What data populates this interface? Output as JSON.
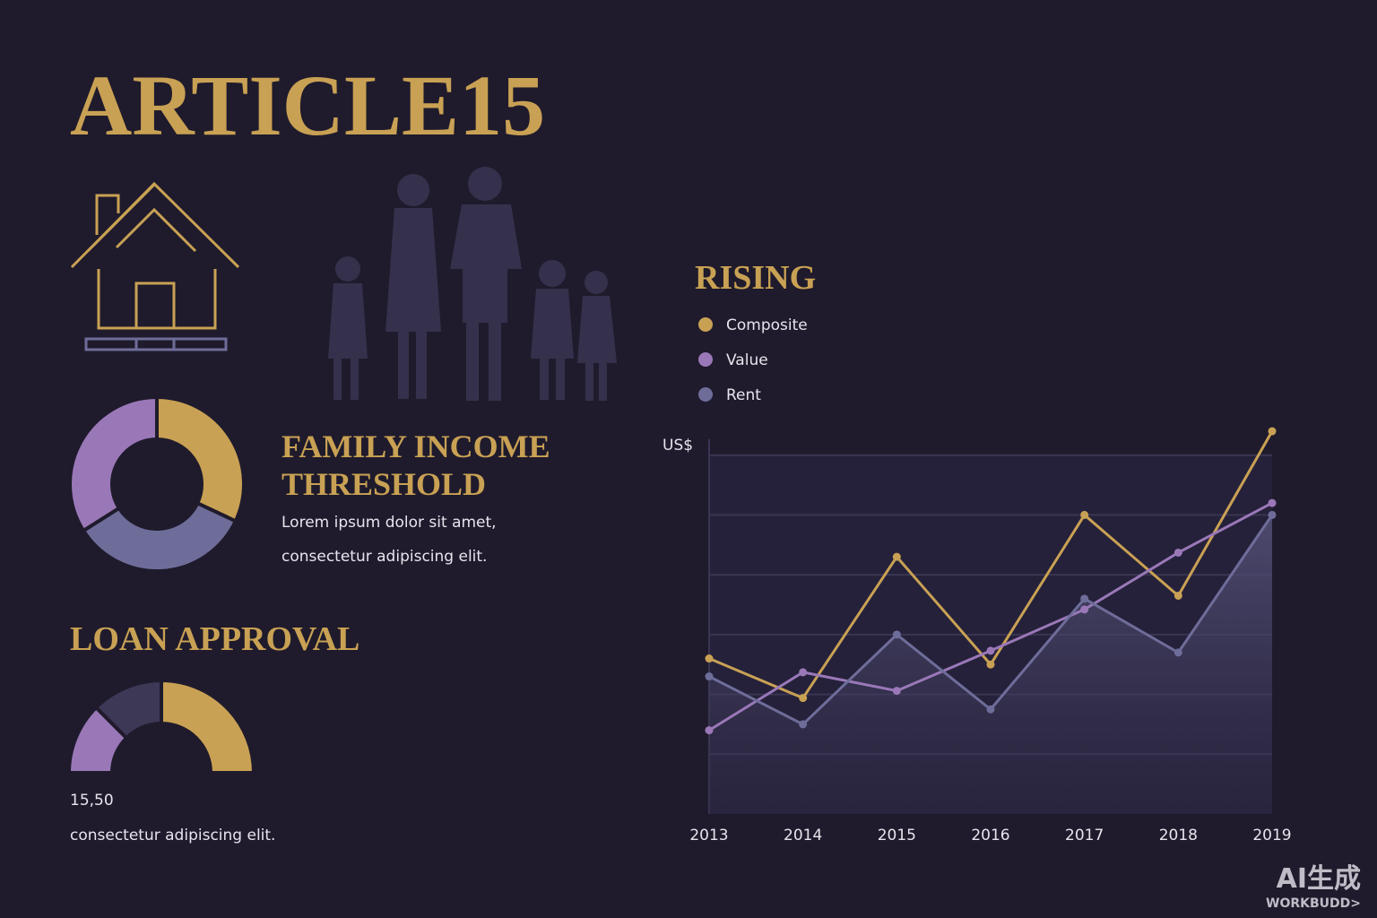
{
  "header": {
    "title": "ARTICLE15"
  },
  "income": {
    "title_lines": [
      "FAMILY INCOME",
      "THRESHOLD"
    ],
    "text_lines": [
      "Lorem ipsum dolor sit amet,",
      "consectetur adipiscing elit."
    ]
  },
  "loan": {
    "value_text": "15,50",
    "text": "consectetur adipiscing elit."
  },
  "watermark": [
    "AI生成",
    "WORKBUDD>"
  ],
  "chart_data": [
    {
      "type": "donut",
      "values": [
        32,
        34,
        34
      ],
      "colors": [
        "#c9a154",
        "#6e6d9a",
        "#9a78b8"
      ]
    },
    {
      "type": "gauge",
      "title": "LOAN APPROVAL",
      "values": [
        25,
        25,
        50
      ],
      "colors": [
        "#9a78b8",
        "#3d3856",
        "#c9a154"
      ]
    },
    {
      "type": "line",
      "title": "RISING",
      "y_label": "US$",
      "categories": [
        "2013",
        "2014",
        "2015",
        "2016",
        "2017",
        "2018",
        "2019"
      ],
      "series": [
        {
          "name": "Composite",
          "color": "#c9a154",
          "values": [
            26,
            19.4,
            43,
            25,
            50,
            36.5,
            64
          ]
        },
        {
          "name": "Value",
          "color": "#9a78b8",
          "values": [
            14,
            23.7,
            20.6,
            27.3,
            34.2,
            43.7,
            52
          ]
        },
        {
          "name": "Rent",
          "color": "#6e6d9a",
          "area": true,
          "values": [
            23,
            15,
            30,
            17.5,
            36,
            27,
            50
          ]
        }
      ],
      "ylim": [
        0,
        70
      ],
      "yticks": [
        10,
        20,
        30,
        40,
        50,
        60
      ],
      "grid": true
    }
  ]
}
